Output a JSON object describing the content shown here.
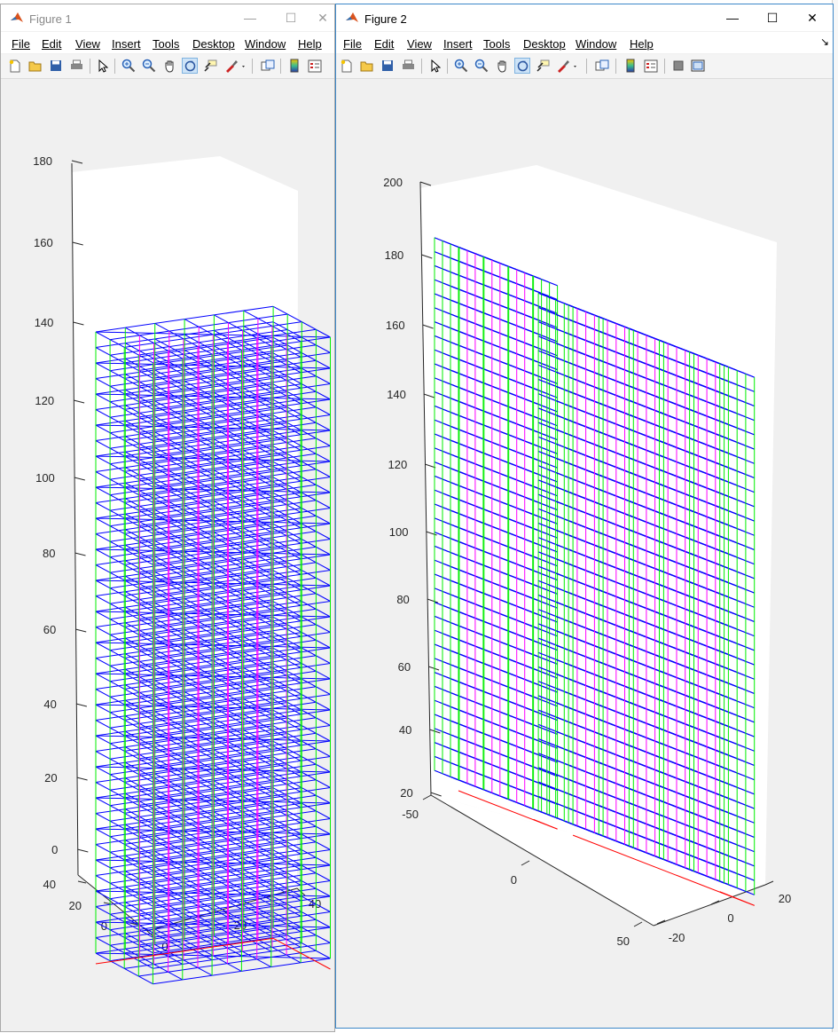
{
  "windows": [
    {
      "id": "win1",
      "title": "Figure 1",
      "menu": [
        "File",
        "Edit",
        "View",
        "Insert",
        "Tools",
        "Desktop",
        "Window",
        "Help"
      ],
      "axes": {
        "z_ticks": [
          "180",
          "160",
          "140",
          "120",
          "100",
          "80",
          "60",
          "40",
          "20",
          "0"
        ],
        "x_ticks": [
          "0",
          "20",
          "40"
        ],
        "y_ticks": [
          "40",
          "20",
          "0"
        ]
      }
    },
    {
      "id": "win2",
      "title": "Figure 2",
      "menu": [
        "File",
        "Edit",
        "View",
        "Insert",
        "Tools",
        "Desktop",
        "Window",
        "Help"
      ],
      "axes": {
        "z_ticks": [
          "200",
          "180",
          "160",
          "140",
          "120",
          "100",
          "80",
          "60",
          "40",
          "20"
        ],
        "x_ticks": [
          "-50",
          "0",
          "50"
        ],
        "y_ticks": [
          "-20",
          "0",
          "20"
        ]
      }
    }
  ],
  "toolbar_icons": [
    "new-figure-icon",
    "open-file-icon",
    "save-icon",
    "print-icon",
    "edit-plot-arrow-icon",
    "zoom-in-icon",
    "zoom-out-icon",
    "pan-hand-icon",
    "rotate-3d-icon",
    "data-cursor-icon",
    "brush-icon",
    "link-plot-icon",
    "colorbar-icon",
    "legend-icon",
    "hide-plot-tools-icon",
    "show-plot-tools-icon"
  ],
  "colors": {
    "beams": "#0000ff",
    "braces": "#ff00ff",
    "columns": "#00ee00",
    "base": "#ff0000",
    "figure_bg": "#f0f0f0"
  }
}
